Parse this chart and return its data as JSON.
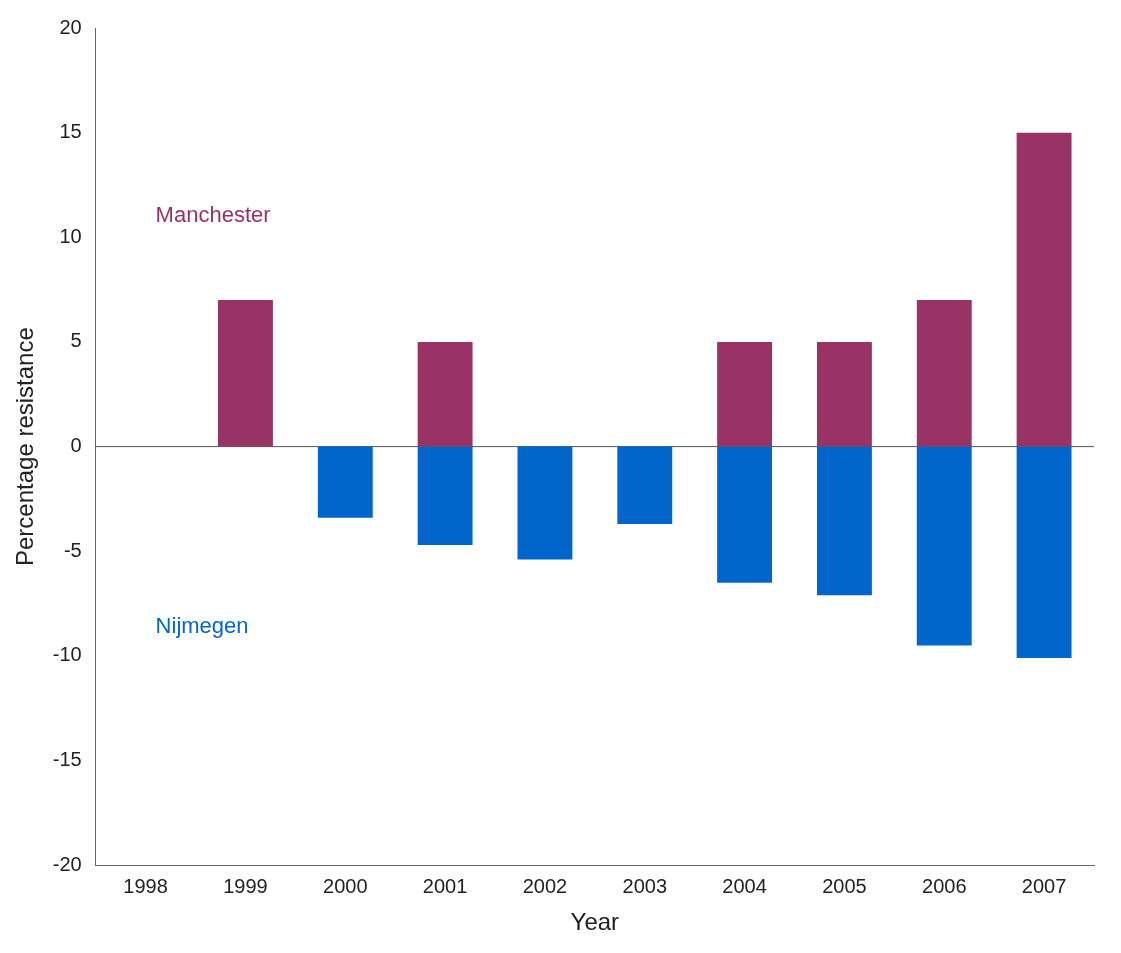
{
  "chart_data": {
    "type": "bar",
    "xlabel": "Year",
    "ylabel": "Percentage resistance",
    "categories": [
      "1998",
      "1999",
      "2000",
      "2001",
      "2002",
      "2003",
      "2004",
      "2005",
      "2006",
      "2007"
    ],
    "series": [
      {
        "name": "Manchester",
        "color": "#993366",
        "values": [
          null,
          7,
          null,
          5,
          null,
          null,
          5,
          5,
          7,
          15
        ]
      },
      {
        "name": "Nijmegen",
        "color": "#0066cc",
        "values": [
          null,
          null,
          -3.4,
          -4.7,
          -5.4,
          -3.7,
          -6.5,
          -7.1,
          -9.5,
          -10.1
        ]
      }
    ],
    "stacked": true,
    "ylim": [
      -20,
      20
    ],
    "yticks": [
      -20,
      -15,
      -10,
      -5,
      0,
      5,
      10,
      15,
      20
    ],
    "ref_lines": [
      {
        "axis": "y",
        "value": 0,
        "color": "#555555"
      }
    ],
    "grid": false,
    "legend": false
  }
}
